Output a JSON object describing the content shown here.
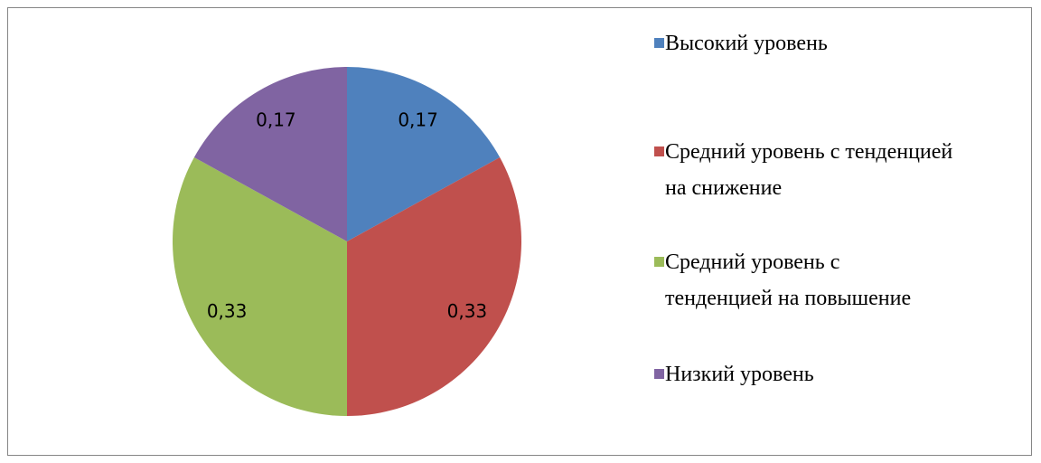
{
  "chart_data": {
    "type": "pie",
    "categories": [
      "Высокий уровень",
      "Средний уровень с тенденцией на снижение",
      "Средний уровень с тенденцией на повышение",
      "Низкий уровень"
    ],
    "values": [
      0.17,
      0.33,
      0.33,
      0.17
    ],
    "value_labels": [
      "0,17",
      "0,33",
      "0,33",
      "0,17"
    ],
    "colors": [
      "#4f81bd",
      "#c0504d",
      "#9bbb59",
      "#8064a2"
    ],
    "legend": "right"
  }
}
